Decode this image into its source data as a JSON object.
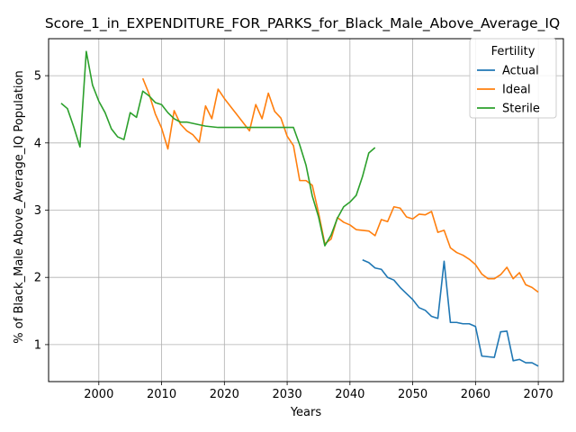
{
  "chart_data": {
    "type": "line",
    "title": "Score_1_in_EXPENDITURE_FOR_PARKS_for_Black_Male_Above_Average_IQ",
    "xlabel": "Years",
    "ylabel": "% of Black_Male Above_Average_IQ Population",
    "xlim": [
      1992,
      2074
    ],
    "ylim": [
      0.45,
      5.55
    ],
    "xticks": [
      2000,
      2010,
      2020,
      2030,
      2040,
      2050,
      2060,
      2070
    ],
    "yticks": [
      1,
      2,
      3,
      4,
      5
    ],
    "grid": true,
    "legend": {
      "title": "Fertility",
      "position": "top-right"
    },
    "series": [
      {
        "name": "Actual",
        "color": "#1f77b4",
        "x": [
          2042,
          2043,
          2044,
          2045,
          2046,
          2047,
          2048,
          2049,
          2050,
          2051,
          2052,
          2053,
          2054,
          2055,
          2056,
          2057,
          2058,
          2059,
          2060,
          2061,
          2062,
          2063,
          2064,
          2065,
          2066,
          2067,
          2068,
          2069,
          2070
        ],
        "y": [
          2.26,
          2.22,
          2.14,
          2.12,
          2.0,
          1.96,
          1.85,
          1.76,
          1.67,
          1.55,
          1.51,
          1.42,
          1.39,
          2.24,
          1.33,
          1.33,
          1.31,
          1.31,
          1.27,
          0.83,
          0.82,
          0.81,
          1.19,
          1.2,
          0.76,
          0.78,
          0.73,
          0.73,
          0.68
        ]
      },
      {
        "name": "Ideal",
        "color": "#ff7f0e",
        "x": [
          2007,
          2008,
          2009,
          2010,
          2011,
          2012,
          2013,
          2014,
          2015,
          2016,
          2017,
          2018,
          2019,
          2020,
          2021,
          2022,
          2023,
          2024,
          2025,
          2026,
          2027,
          2028,
          2029,
          2030,
          2031,
          2032,
          2033,
          2034,
          2035,
          2036,
          2037,
          2038,
          2039,
          2040,
          2041,
          2042,
          2043,
          2044,
          2045,
          2046,
          2047,
          2048,
          2049,
          2050,
          2051,
          2052,
          2053,
          2054,
          2055,
          2056,
          2057,
          2058,
          2059,
          2060,
          2061,
          2062,
          2063,
          2064,
          2065,
          2066,
          2067,
          2068,
          2069,
          2070
        ],
        "y": [
          4.96,
          4.73,
          4.43,
          4.22,
          3.91,
          4.48,
          4.28,
          4.18,
          4.12,
          4.01,
          4.55,
          4.36,
          4.8,
          4.66,
          4.54,
          4.42,
          4.3,
          4.18,
          4.57,
          4.36,
          4.74,
          4.47,
          4.37,
          4.1,
          3.96,
          3.44,
          3.44,
          3.37,
          2.96,
          2.5,
          2.57,
          2.89,
          2.82,
          2.78,
          2.71,
          2.7,
          2.69,
          2.62,
          2.86,
          2.83,
          3.05,
          3.03,
          2.9,
          2.87,
          2.94,
          2.93,
          2.98,
          2.67,
          2.7,
          2.44,
          2.37,
          2.33,
          2.27,
          2.19,
          2.05,
          1.98,
          1.98,
          2.04,
          2.15,
          1.98,
          2.07,
          1.89,
          1.85,
          1.78
        ]
      },
      {
        "name": "Sterile",
        "color": "#2ca02c",
        "x": [
          1994,
          1995,
          1996,
          1997,
          1998,
          1999,
          2000,
          2001,
          2002,
          2003,
          2004,
          2005,
          2006,
          2007,
          2008,
          2009,
          2010,
          2011,
          2012,
          2013,
          2014,
          2015,
          2016,
          2017,
          2018,
          2019,
          2020,
          2021,
          2022,
          2023,
          2024,
          2025,
          2026,
          2027,
          2028,
          2029,
          2030,
          2031,
          2032,
          2033,
          2034,
          2035,
          2036,
          2037,
          2038,
          2039,
          2040,
          2041,
          2042,
          2043,
          2044
        ],
        "y": [
          4.59,
          4.51,
          4.24,
          3.94,
          5.36,
          4.86,
          4.62,
          4.45,
          4.21,
          4.09,
          4.05,
          4.45,
          4.38,
          4.77,
          4.7,
          4.6,
          4.57,
          4.45,
          4.36,
          4.31,
          4.31,
          4.29,
          4.27,
          4.25,
          4.24,
          4.23,
          4.23,
          4.23,
          4.23,
          4.23,
          4.23,
          4.23,
          4.23,
          4.23,
          4.23,
          4.23,
          4.23,
          4.23,
          3.97,
          3.67,
          3.21,
          2.9,
          2.47,
          2.63,
          2.88,
          3.05,
          3.12,
          3.22,
          3.5,
          3.85,
          3.93
        ]
      }
    ]
  }
}
